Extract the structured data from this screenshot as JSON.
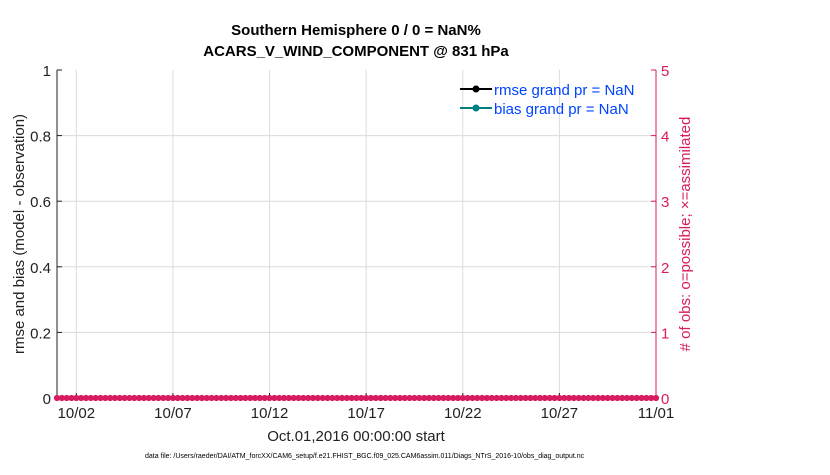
{
  "chart_data": {
    "type": "line",
    "title": [
      "Southern Hemisphere 0 / 0 = NaN%",
      "ACARS_V_WIND_COMPONENT @ 831 hPa"
    ],
    "xlabel": "Oct.01,2016 00:00:00 start",
    "ylabel": "rmse and bias (model - observation)",
    "ylabel_right": "# of obs: o=possible; ×=assimilated",
    "xlim": [
      "2016-10-01",
      "2016-11-01"
    ],
    "ylim": [
      0,
      1
    ],
    "ylim_right": [
      0,
      5
    ],
    "x_ticks": [
      {
        "date": "2016-10-02",
        "label": "10/02"
      },
      {
        "date": "2016-10-07",
        "label": "10/07"
      },
      {
        "date": "2016-10-12",
        "label": "10/12"
      },
      {
        "date": "2016-10-17",
        "label": "10/17"
      },
      {
        "date": "2016-10-22",
        "label": "10/22"
      },
      {
        "date": "2016-10-27",
        "label": "10/27"
      },
      {
        "date": "2016-11-01",
        "label": "11/01"
      }
    ],
    "y_ticks": [
      "0",
      "0.2",
      "0.4",
      "0.6",
      "0.8",
      "1"
    ],
    "y_ticks_right": [
      "0",
      "1",
      "2",
      "3",
      "4",
      "5"
    ],
    "grid": true,
    "legend_position": "top-right",
    "series": [
      {
        "name": "rmse grand pr = NaN",
        "color": "#000000",
        "values": "NaN"
      },
      {
        "name": "bias grand pr = NaN",
        "color": "#008080",
        "values": "NaN"
      },
      {
        "name": "# obs possible",
        "color": "#d81b60",
        "axis": "right",
        "interval_hours": 6,
        "value": 0
      }
    ],
    "colors": {
      "right_axis": "#d81b60",
      "legend_text": "#0044ff"
    },
    "footer": "data file: /Users/raeder/DAI/ATM_forcXX/CAM6_setup/f.e21.FHIST_BGC.f09_025.CAM6assim.011/Diags_NTrS_2016-10/obs_diag_output.nc"
  }
}
